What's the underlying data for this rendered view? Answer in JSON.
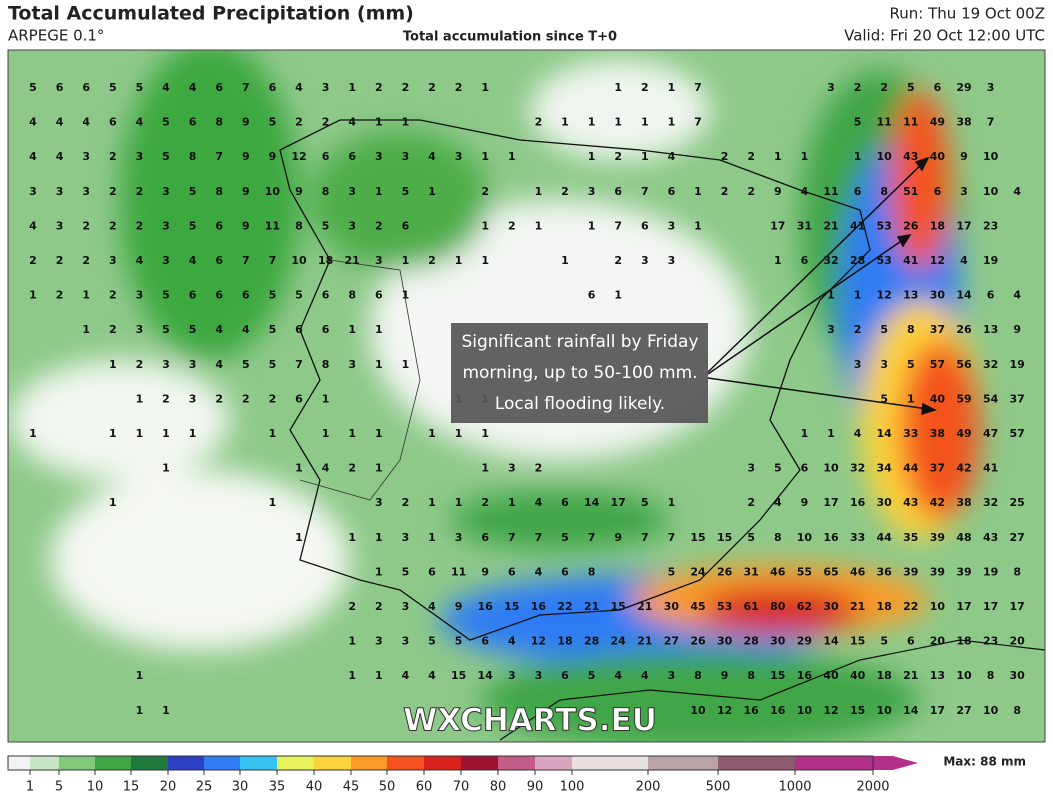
{
  "header": {
    "title": "Total Accumulated Precipitation (mm)",
    "model": "ARPEGE 0.1°",
    "subtitle": "Total accumulation since T+0",
    "run": "Run: Thu 19 Oct 00Z",
    "valid": "Valid: Fri 20 Oct 12:00 UTC"
  },
  "annotation": [
    "Significant rainfall by Friday",
    "morning, up to 50-100 mm.",
    "Local flooding likely."
  ],
  "watermark": "WXCHARTS.EU",
  "grid_values": [
    [
      5,
      6,
      6,
      5,
      5,
      4,
      4,
      6,
      7,
      6,
      4,
      3,
      1,
      2,
      2,
      2,
      2,
      1,
      null,
      null,
      null,
      null,
      1,
      2,
      1,
      7,
      null,
      null,
      null,
      null,
      3,
      2,
      2,
      5,
      6,
      29,
      3,
      null
    ],
    [
      4,
      4,
      4,
      6,
      4,
      5,
      6,
      8,
      9,
      5,
      2,
      2,
      4,
      1,
      1,
      null,
      null,
      null,
      null,
      2,
      1,
      1,
      1,
      1,
      1,
      7,
      null,
      null,
      null,
      null,
      null,
      5,
      11,
      11,
      49,
      38,
      7,
      null
    ],
    [
      4,
      4,
      3,
      2,
      3,
      5,
      8,
      7,
      9,
      9,
      12,
      6,
      6,
      3,
      3,
      4,
      3,
      1,
      1,
      null,
      null,
      1,
      2,
      1,
      4,
      null,
      2,
      2,
      1,
      1,
      null,
      1,
      10,
      43,
      40,
      9,
      10,
      null
    ],
    [
      3,
      3,
      3,
      2,
      2,
      3,
      5,
      8,
      9,
      10,
      9,
      8,
      3,
      1,
      5,
      1,
      null,
      2,
      null,
      1,
      2,
      3,
      6,
      7,
      6,
      1,
      2,
      2,
      9,
      4,
      11,
      6,
      8,
      51,
      6,
      3,
      10,
      4
    ],
    [
      4,
      3,
      2,
      2,
      2,
      3,
      5,
      6,
      9,
      11,
      8,
      5,
      3,
      2,
      6,
      null,
      null,
      1,
      2,
      1,
      null,
      1,
      7,
      6,
      3,
      1,
      null,
      null,
      17,
      31,
      21,
      41,
      53,
      26,
      18,
      17,
      23,
      null
    ],
    [
      2,
      2,
      2,
      3,
      4,
      3,
      4,
      6,
      7,
      7,
      10,
      18,
      21,
      3,
      1,
      2,
      1,
      1,
      null,
      null,
      1,
      null,
      2,
      3,
      3,
      null,
      null,
      null,
      1,
      6,
      32,
      28,
      53,
      41,
      12,
      4,
      19,
      null
    ],
    [
      1,
      2,
      1,
      2,
      3,
      5,
      6,
      6,
      6,
      5,
      5,
      6,
      8,
      6,
      1,
      null,
      null,
      null,
      null,
      null,
      null,
      6,
      1,
      null,
      null,
      null,
      null,
      null,
      null,
      null,
      1,
      1,
      12,
      13,
      30,
      14,
      6,
      4
    ],
    [
      null,
      null,
      1,
      2,
      3,
      5,
      5,
      4,
      4,
      5,
      6,
      6,
      1,
      1,
      null,
      null,
      null,
      null,
      null,
      null,
      null,
      null,
      null,
      null,
      null,
      null,
      null,
      null,
      null,
      null,
      3,
      2,
      5,
      8,
      37,
      26,
      13,
      9
    ],
    [
      null,
      null,
      null,
      1,
      2,
      3,
      3,
      4,
      5,
      5,
      7,
      8,
      3,
      1,
      1,
      null,
      null,
      null,
      null,
      null,
      null,
      null,
      null,
      null,
      null,
      null,
      null,
      null,
      null,
      null,
      null,
      3,
      3,
      5,
      57,
      56,
      32,
      19
    ],
    [
      null,
      null,
      null,
      null,
      1,
      2,
      3,
      2,
      2,
      2,
      6,
      1,
      null,
      null,
      null,
      null,
      1,
      1,
      null,
      null,
      null,
      null,
      null,
      null,
      null,
      null,
      null,
      null,
      null,
      null,
      null,
      null,
      5,
      1,
      40,
      59,
      54,
      37
    ],
    [
      1,
      null,
      null,
      1,
      1,
      1,
      1,
      null,
      null,
      1,
      null,
      1,
      1,
      1,
      null,
      1,
      1,
      1,
      null,
      null,
      null,
      null,
      null,
      null,
      null,
      null,
      null,
      null,
      null,
      1,
      1,
      4,
      14,
      33,
      38,
      49,
      47,
      57
    ],
    [
      null,
      null,
      null,
      null,
      null,
      1,
      null,
      null,
      null,
      null,
      1,
      4,
      2,
      1,
      null,
      null,
      null,
      1,
      3,
      2,
      null,
      null,
      null,
      null,
      null,
      null,
      null,
      3,
      5,
      6,
      10,
      32,
      34,
      44,
      37,
      42,
      41,
      null
    ],
    [
      null,
      null,
      null,
      1,
      null,
      null,
      null,
      null,
      null,
      1,
      null,
      null,
      null,
      3,
      2,
      1,
      1,
      2,
      1,
      4,
      6,
      14,
      17,
      5,
      1,
      null,
      null,
      2,
      4,
      9,
      17,
      16,
      30,
      43,
      42,
      38,
      32,
      25
    ],
    [
      null,
      null,
      null,
      null,
      null,
      null,
      null,
      null,
      null,
      null,
      1,
      null,
      1,
      1,
      3,
      1,
      3,
      6,
      7,
      7,
      5,
      7,
      9,
      7,
      7,
      15,
      15,
      5,
      8,
      10,
      16,
      33,
      44,
      35,
      39,
      48,
      43,
      27
    ],
    [
      null,
      null,
      null,
      null,
      null,
      null,
      null,
      null,
      null,
      null,
      null,
      null,
      null,
      1,
      5,
      6,
      11,
      9,
      6,
      4,
      6,
      8,
      null,
      null,
      5,
      24,
      26,
      31,
      46,
      55,
      65,
      46,
      36,
      39,
      39,
      39,
      19,
      8
    ],
    [
      null,
      null,
      null,
      null,
      null,
      null,
      null,
      null,
      null,
      null,
      null,
      null,
      2,
      2,
      3,
      4,
      9,
      16,
      15,
      16,
      22,
      21,
      15,
      21,
      30,
      45,
      53,
      61,
      80,
      62,
      30,
      21,
      18,
      22,
      10,
      17,
      17,
      17
    ],
    [
      null,
      null,
      null,
      null,
      null,
      null,
      null,
      null,
      null,
      null,
      null,
      null,
      1,
      3,
      3,
      5,
      5,
      6,
      4,
      12,
      18,
      28,
      24,
      21,
      27,
      26,
      30,
      28,
      30,
      29,
      14,
      15,
      5,
      6,
      20,
      18,
      23,
      20
    ],
    [
      null,
      null,
      null,
      null,
      1,
      null,
      null,
      null,
      null,
      null,
      null,
      null,
      1,
      1,
      4,
      4,
      15,
      14,
      3,
      3,
      6,
      5,
      4,
      4,
      3,
      8,
      9,
      8,
      15,
      16,
      40,
      40,
      18,
      21,
      13,
      10,
      8,
      30
    ],
    [
      null,
      null,
      null,
      null,
      1,
      1,
      null,
      null,
      null,
      null,
      null,
      null,
      null,
      null,
      null,
      null,
      null,
      null,
      null,
      null,
      null,
      null,
      null,
      null,
      null,
      10,
      12,
      16,
      16,
      10,
      12,
      15,
      10,
      14,
      17,
      27,
      10,
      8
    ]
  ],
  "colorbar": {
    "ticks": [
      1,
      5,
      10,
      15,
      20,
      25,
      30,
      35,
      40,
      45,
      50,
      60,
      70,
      80,
      90,
      100,
      200,
      500,
      1000,
      2000
    ],
    "colors": [
      "#f2f2f2",
      "#c6e5c2",
      "#82c97a",
      "#3fa646",
      "#1d7a3a",
      "#2a3fc4",
      "#2f7cf5",
      "#37c3f2",
      "#e8f25a",
      "#fcd33a",
      "#fb9a26",
      "#f4531f",
      "#d8211d",
      "#9e1431",
      "#c45c88",
      "#d9a5bf",
      "#e6e0e0",
      "#b9a3a6",
      "#8d5a70",
      "#b33088"
    ],
    "max": "Max: 88 mm"
  }
}
